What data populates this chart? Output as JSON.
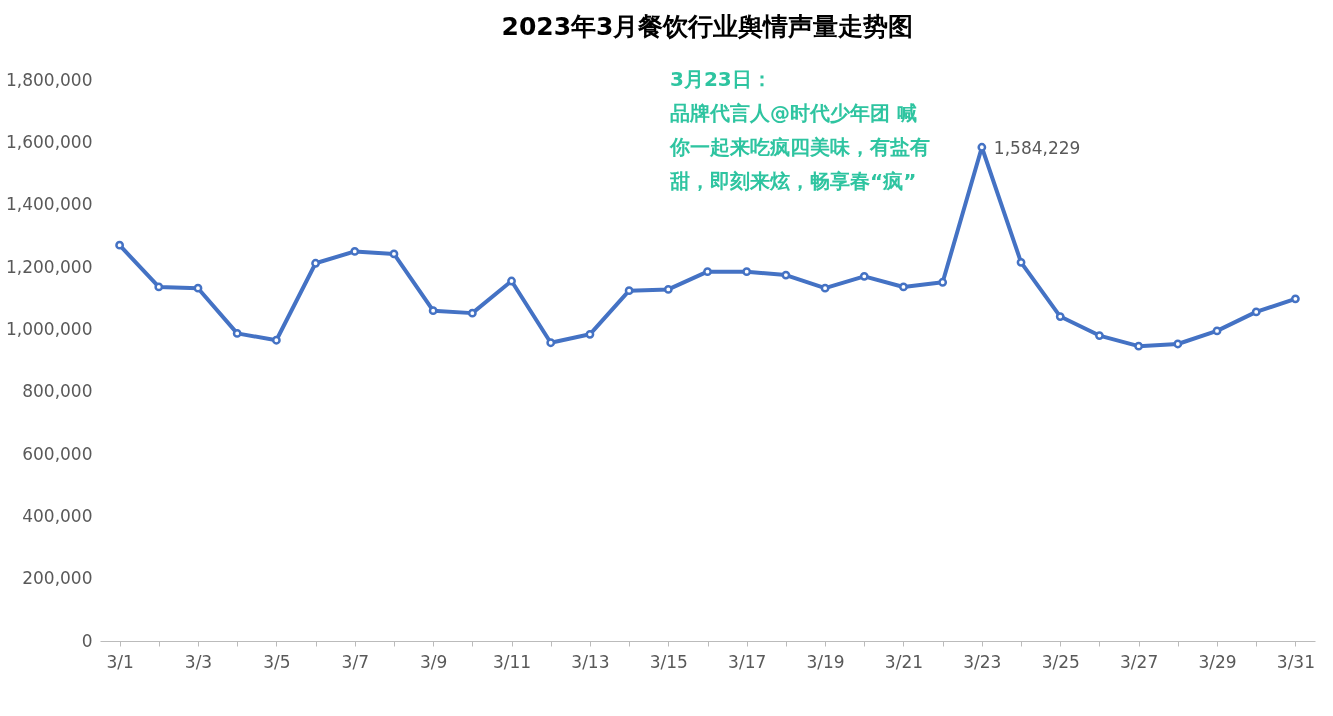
{
  "chart_data": {
    "type": "line",
    "title": "2023年3月餐饮行业舆情声量走势图",
    "categories": [
      "3/1",
      null,
      "3/3",
      null,
      "3/5",
      null,
      "3/7",
      null,
      "3/9",
      null,
      "3/11",
      null,
      "3/13",
      null,
      "3/15",
      null,
      "3/17",
      null,
      "3/19",
      null,
      "3/21",
      null,
      "3/23",
      null,
      "3/25",
      null,
      "3/27",
      null,
      "3/29",
      null,
      "3/31"
    ],
    "series": [
      {
        "color": "#4472c4",
        "values": [
          1270000,
          1136000,
          1132000,
          987000,
          965000,
          1212000,
          1250000,
          1242000,
          1060000,
          1052000,
          1155000,
          957000,
          984000,
          1124000,
          1128000,
          1185000,
          1185000,
          1174000,
          1132000,
          1170000,
          1136000,
          1151000,
          1584229,
          1215000,
          1041000,
          980000,
          946000,
          953000,
          995000,
          1056000,
          1098000
        ],
        "value_labels": [
          null,
          null,
          null,
          null,
          null,
          null,
          null,
          null,
          null,
          null,
          null,
          null,
          null,
          null,
          null,
          null,
          null,
          null,
          null,
          null,
          null,
          null,
          "1,584,229",
          null,
          null,
          null,
          null,
          null,
          null,
          null,
          null
        ]
      }
    ],
    "ylim": [
      0,
      1800000
    ],
    "yticks": [
      0,
      {
        "value": 200000,
        "label": "200,000"
      },
      {
        "value": 400000,
        "label": "400,000"
      },
      {
        "value": 600000,
        "label": "600,000"
      },
      {
        "value": 800000,
        "label": "800,000"
      },
      {
        "value": 1000000,
        "label": "1,000,000"
      },
      {
        "value": 1200000,
        "label": "1,200,000"
      },
      {
        "value": 1400000,
        "label": "1,400,000"
      },
      {
        "value": 1600000,
        "label": "1,600,000"
      },
      {
        "value": 1800000,
        "label": "1,800,000"
      }
    ],
    "grid": false,
    "marker": "circle",
    "line_style": "solid",
    "annotations": [
      "3月23日：品牌代言人@时代少年团 喊你一起来吃疯四美味，有盐有甜，即刻来炫，畅享春“疯”"
    ]
  }
}
